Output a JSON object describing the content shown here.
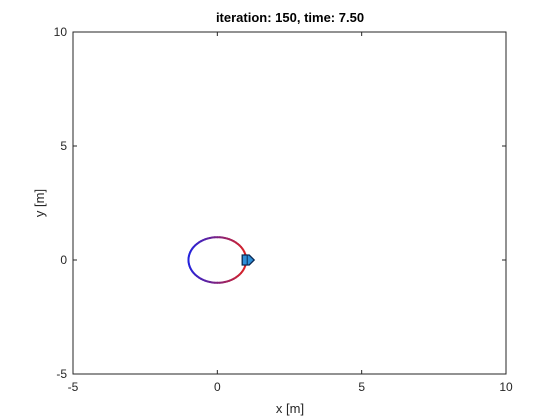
{
  "chart_data": {
    "type": "scatter",
    "title": "iteration: 150, time: 7.50",
    "xlabel": "x [m]",
    "ylabel": "y [m]",
    "xlim": [
      -5,
      10
    ],
    "ylim": [
      -5,
      10
    ],
    "x_ticks": [
      -5,
      0,
      5,
      10
    ],
    "y_ticks": [
      -5,
      0,
      5,
      10
    ],
    "x_tick_labels": [
      "-5",
      "0",
      "5",
      "10"
    ],
    "y_tick_labels": [
      "-5",
      "0",
      "5",
      "10"
    ],
    "grid": false,
    "trajectory": {
      "shape": "circle",
      "center": [
        0,
        0
      ],
      "radius": 1.0
    },
    "robot": {
      "position": [
        1.0,
        0.0
      ],
      "heading_deg": 0
    },
    "colors": {
      "trajectory_start": "#dd2222",
      "trajectory_end": "#2222dd",
      "robot_fill": "#2f8fd8",
      "robot_edge": "#0a2a55",
      "axes": "#262626"
    }
  }
}
